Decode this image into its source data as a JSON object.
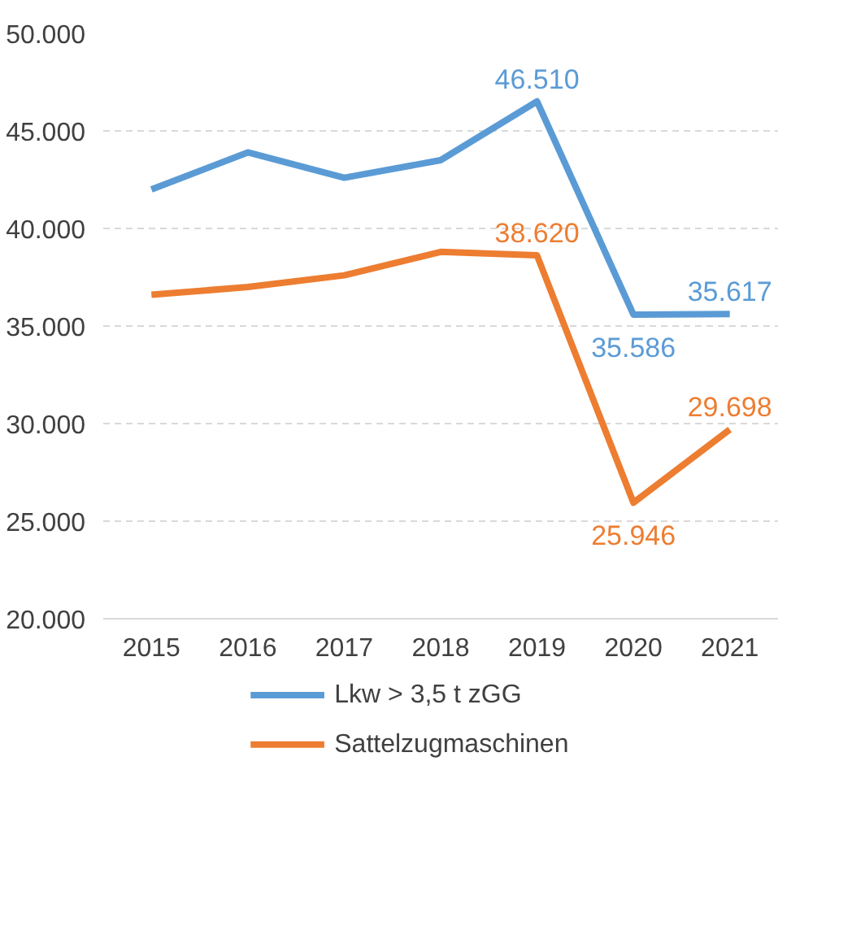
{
  "chart_data": {
    "type": "line",
    "categories": [
      "2015",
      "2016",
      "2017",
      "2018",
      "2019",
      "2020",
      "2021"
    ],
    "series": [
      {
        "name": "Lkw > 3,5 t zGG",
        "color": "#5b9bd5",
        "values": [
          42000,
          43900,
          42600,
          43500,
          46510,
          35586,
          35617
        ],
        "value_labels": [
          null,
          null,
          null,
          null,
          "46.510",
          "35.586",
          "35.617"
        ]
      },
      {
        "name": "Sattelzugmaschinen",
        "color": "#ed7d31",
        "values": [
          36600,
          37000,
          37600,
          38800,
          38620,
          25946,
          29698
        ],
        "value_labels": [
          null,
          null,
          null,
          null,
          "38.620",
          "25.946",
          "29.698"
        ]
      }
    ],
    "ylim": [
      20000,
      50000
    ],
    "yticks": [
      {
        "value": 20000,
        "label": "20.000"
      },
      {
        "value": 25000,
        "label": "25.000"
      },
      {
        "value": 30000,
        "label": "30.000"
      },
      {
        "value": 35000,
        "label": "35.000"
      },
      {
        "value": 40000,
        "label": "40.000"
      },
      {
        "value": 45000,
        "label": "45.000"
      },
      {
        "value": 50000,
        "label": "50.000"
      }
    ],
    "grid": "y",
    "legend": "bottom",
    "marker": "none",
    "line_style": "solid"
  }
}
